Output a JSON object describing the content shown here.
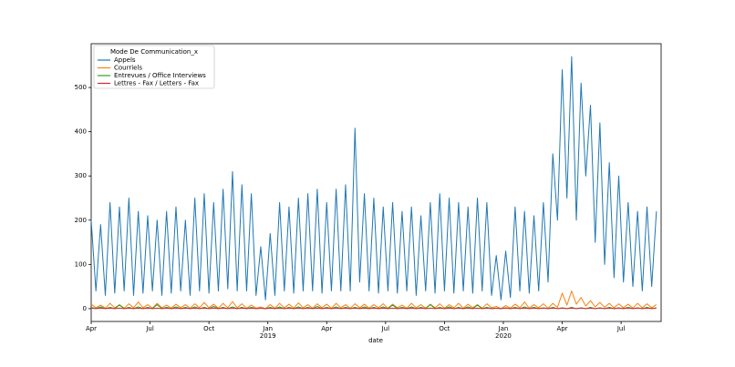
{
  "chart_data": {
    "type": "line",
    "legend_title": "Mode De Communication_x",
    "xlabel": "date",
    "x": [
      2018.25,
      2018.27,
      2018.29,
      2018.31,
      2018.33,
      2018.35,
      2018.37,
      2018.39,
      2018.41,
      2018.43,
      2018.45,
      2018.47,
      2018.49,
      2018.51,
      2018.53,
      2018.55,
      2018.57,
      2018.59,
      2018.61,
      2018.63,
      2018.65,
      2018.67,
      2018.69,
      2018.71,
      2018.73,
      2018.75,
      2018.77,
      2018.79,
      2018.81,
      2018.83,
      2018.85,
      2018.87,
      2018.89,
      2018.91,
      2018.93,
      2018.95,
      2018.97,
      2018.99,
      2019.01,
      2019.03,
      2019.05,
      2019.07,
      2019.09,
      2019.11,
      2019.13,
      2019.15,
      2019.17,
      2019.19,
      2019.21,
      2019.23,
      2019.25,
      2019.27,
      2019.29,
      2019.31,
      2019.33,
      2019.35,
      2019.37,
      2019.39,
      2019.41,
      2019.43,
      2019.45,
      2019.47,
      2019.49,
      2019.51,
      2019.53,
      2019.55,
      2019.57,
      2019.59,
      2019.61,
      2019.63,
      2019.65,
      2019.67,
      2019.69,
      2019.71,
      2019.73,
      2019.75,
      2019.77,
      2019.79,
      2019.81,
      2019.83,
      2019.85,
      2019.87,
      2019.89,
      2019.91,
      2019.93,
      2019.95,
      2019.97,
      2019.99,
      2020.01,
      2020.03,
      2020.05,
      2020.07,
      2020.09,
      2020.11,
      2020.13,
      2020.15,
      2020.17,
      2020.19,
      2020.21,
      2020.23,
      2020.25,
      2020.27,
      2020.29,
      2020.31,
      2020.33,
      2020.35,
      2020.37,
      2020.39,
      2020.41,
      2020.43,
      2020.45,
      2020.47,
      2020.49,
      2020.51,
      2020.53,
      2020.55,
      2020.57,
      2020.59,
      2020.61,
      2020.63,
      2020.65
    ],
    "series": [
      {
        "name": "Appels",
        "color": "#1f77b4",
        "values": [
          200,
          40,
          190,
          30,
          240,
          35,
          230,
          40,
          250,
          30,
          220,
          35,
          210,
          40,
          200,
          30,
          220,
          35,
          230,
          40,
          200,
          30,
          250,
          40,
          260,
          35,
          240,
          40,
          270,
          45,
          310,
          40,
          280,
          40,
          260,
          30,
          140,
          20,
          170,
          30,
          240,
          40,
          230,
          35,
          250,
          40,
          260,
          40,
          270,
          35,
          240,
          40,
          270,
          40,
          280,
          40,
          408,
          60,
          260,
          40,
          250,
          35,
          230,
          40,
          240,
          35,
          220,
          40,
          230,
          30,
          210,
          40,
          240,
          35,
          260,
          40,
          250,
          35,
          240,
          40,
          230,
          35,
          250,
          40,
          240,
          30,
          120,
          20,
          130,
          25,
          230,
          40,
          220,
          35,
          210,
          40,
          240,
          60,
          350,
          200,
          540,
          250,
          570,
          200,
          510,
          300,
          460,
          150,
          420,
          100,
          330,
          70,
          300,
          60,
          240,
          50,
          220,
          40,
          230,
          50,
          220
        ]
      },
      {
        "name": "Courriels",
        "color": "#ff7f0e",
        "values": [
          10,
          2,
          8,
          1,
          12,
          2,
          9,
          1,
          11,
          2,
          15,
          2,
          9,
          1,
          12,
          2,
          8,
          1,
          10,
          2,
          9,
          1,
          11,
          2,
          14,
          2,
          10,
          1,
          12,
          2,
          16,
          2,
          11,
          1,
          8,
          1,
          4,
          0,
          9,
          1,
          12,
          2,
          10,
          1,
          13,
          2,
          9,
          1,
          11,
          2,
          10,
          1,
          12,
          2,
          9,
          1,
          11,
          2,
          10,
          1,
          9,
          2,
          11,
          1,
          10,
          2,
          8,
          1,
          12,
          2,
          9,
          1,
          10,
          2,
          11,
          1,
          9,
          2,
          12,
          1,
          10,
          2,
          9,
          1,
          11,
          2,
          5,
          0,
          7,
          1,
          10,
          2,
          15,
          1,
          9,
          2,
          11,
          1,
          12,
          3,
          35,
          8,
          40,
          10,
          25,
          6,
          18,
          4,
          14,
          3,
          12,
          2,
          11,
          2,
          10,
          1,
          12,
          2,
          11,
          2,
          9
        ]
      },
      {
        "name": "Entrevues / Office Interviews",
        "color": "#2ca02c",
        "values": [
          3,
          0,
          4,
          0,
          3,
          0,
          8,
          0,
          3,
          0,
          4,
          0,
          3,
          0,
          9,
          0,
          3,
          0,
          4,
          0,
          3,
          0,
          4,
          0,
          3,
          0,
          5,
          0,
          3,
          0,
          4,
          0,
          3,
          0,
          3,
          0,
          1,
          0,
          3,
          0,
          4,
          0,
          3,
          0,
          4,
          0,
          3,
          0,
          5,
          0,
          3,
          0,
          4,
          0,
          3,
          0,
          3,
          0,
          4,
          0,
          3,
          0,
          4,
          0,
          8,
          0,
          3,
          0,
          4,
          0,
          3,
          0,
          9,
          0,
          3,
          0,
          4,
          0,
          3,
          0,
          4,
          0,
          8,
          0,
          3,
          0,
          1,
          0,
          2,
          0,
          3,
          0,
          4,
          0,
          3,
          0,
          2,
          0,
          3,
          0,
          2,
          0,
          3,
          0,
          2,
          0,
          3,
          0,
          2,
          0,
          3,
          0,
          2,
          0,
          3,
          0,
          2,
          0,
          3,
          0,
          2
        ]
      },
      {
        "name": "Lettres - Fax / Letters - Fax",
        "color": "#d62728",
        "values": [
          1,
          0,
          1,
          0,
          1,
          0,
          1,
          0,
          1,
          0,
          1,
          0,
          1,
          0,
          1,
          0,
          1,
          0,
          1,
          0,
          1,
          0,
          1,
          0,
          1,
          0,
          1,
          0,
          1,
          0,
          1,
          0,
          1,
          0,
          1,
          0,
          1,
          0,
          1,
          0,
          1,
          0,
          1,
          0,
          1,
          0,
          1,
          0,
          1,
          0,
          1,
          0,
          1,
          0,
          1,
          0,
          1,
          0,
          1,
          0,
          1,
          0,
          1,
          0,
          1,
          0,
          1,
          0,
          1,
          0,
          1,
          0,
          1,
          0,
          1,
          0,
          1,
          0,
          1,
          0,
          1,
          0,
          1,
          0,
          1,
          0,
          1,
          0,
          1,
          0,
          1,
          0,
          1,
          0,
          1,
          0,
          1,
          0,
          1,
          0,
          1,
          0,
          1,
          0,
          1,
          0,
          1,
          0,
          1,
          0,
          1,
          0,
          1,
          0,
          1,
          0,
          1,
          0,
          1,
          0,
          1
        ]
      }
    ],
    "xlim": [
      2018.25,
      2020.67
    ],
    "xticks": [
      {
        "value": 2018.25,
        "label": "Apr"
      },
      {
        "value": 2018.5,
        "label": "Jul"
      },
      {
        "value": 2018.75,
        "label": "Oct"
      },
      {
        "value": 2019,
        "label": "Jan",
        "sublabel": "2019"
      },
      {
        "value": 2019.25,
        "label": "Apr"
      },
      {
        "value": 2019.5,
        "label": "Jul"
      },
      {
        "value": 2019.75,
        "label": "Oct"
      },
      {
        "value": 2020,
        "label": "Jan",
        "sublabel": "2020"
      },
      {
        "value": 2020.25,
        "label": "Apr"
      },
      {
        "value": 2020.5,
        "label": "Jul"
      }
    ],
    "ylim": [
      -29,
      599
    ],
    "yticks": [
      0,
      100,
      200,
      300,
      400,
      500
    ],
    "legend": "upper left"
  }
}
